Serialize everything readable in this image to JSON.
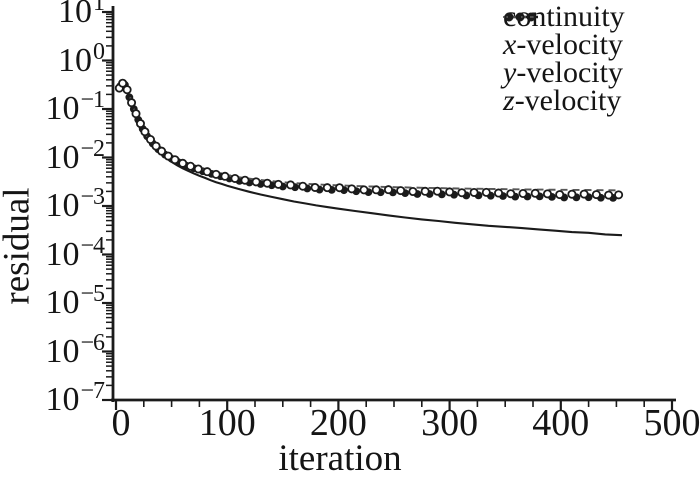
{
  "figure": {
    "background": "#ffffff",
    "ink_color": "#1b1b1b",
    "dashed_color": "#585858"
  },
  "chart_data": {
    "type": "line",
    "title": "",
    "xlabel": "iteration",
    "ylabel": "residual",
    "x_axis": {
      "min": 0,
      "max": 500,
      "major_step": 100,
      "minor_step": 25,
      "tick_labels": [
        "0",
        "100",
        "200",
        "300",
        "400",
        "500"
      ]
    },
    "y_axis": {
      "scale": "log",
      "base": "10",
      "exponents": [
        1,
        0,
        -1,
        -2,
        -3,
        -4,
        -5,
        -6,
        -7
      ],
      "minor_mantissas": [
        2,
        3,
        4,
        5,
        6,
        7,
        8,
        9
      ]
    },
    "legend": {
      "position": "top-right",
      "items": [
        {
          "label": "continuity",
          "var": "",
          "rest": "continuity",
          "marker": "solid-line"
        },
        {
          "label": "x-velocity",
          "var": "x",
          "rest": "-velocity",
          "marker": "filled-dots"
        },
        {
          "label": "y-velocity",
          "var": "y",
          "rest": "-velocity",
          "marker": "dashed-line"
        },
        {
          "label": "z-velocity",
          "var": "z",
          "rest": "-velocity",
          "marker": "open-circles"
        }
      ]
    },
    "series": [
      {
        "name": "continuity",
        "style": "solid",
        "points": [
          [
            2,
            0.24
          ],
          [
            5,
            0.33
          ],
          [
            8,
            0.3
          ],
          [
            11,
            0.2
          ],
          [
            14,
            0.125
          ],
          [
            17,
            0.078
          ],
          [
            20,
            0.052
          ],
          [
            23,
            0.037
          ],
          [
            26,
            0.028
          ],
          [
            30,
            0.0205
          ],
          [
            34,
            0.0162
          ],
          [
            38,
            0.0132
          ],
          [
            42,
            0.011
          ],
          [
            46,
            0.0094
          ],
          [
            50,
            0.0081
          ],
          [
            55,
            0.0069
          ],
          [
            60,
            0.006
          ],
          [
            65,
            0.0053
          ],
          [
            70,
            0.0047
          ],
          [
            75,
            0.0042
          ],
          [
            80,
            0.0038
          ],
          [
            85,
            0.0034
          ],
          [
            90,
            0.0031
          ],
          [
            95,
            0.00285
          ],
          [
            100,
            0.00262
          ],
          [
            110,
            0.00225
          ],
          [
            120,
            0.00196
          ],
          [
            130,
            0.00173
          ],
          [
            140,
            0.00154
          ],
          [
            150,
            0.00138
          ],
          [
            160,
            0.00124
          ],
          [
            170,
            0.00113
          ],
          [
            180,
            0.00103
          ],
          [
            190,
            0.00095
          ],
          [
            200,
            0.00088
          ],
          [
            215,
            0.00079
          ],
          [
            230,
            0.00071
          ],
          [
            245,
            0.00064
          ],
          [
            260,
            0.00058
          ],
          [
            275,
            0.00053
          ],
          [
            290,
            0.00049
          ],
          [
            305,
            0.00045
          ],
          [
            320,
            0.00042
          ],
          [
            335,
            0.00039
          ],
          [
            350,
            0.00037
          ],
          [
            365,
            0.00035
          ],
          [
            380,
            0.00033
          ],
          [
            395,
            0.00031
          ],
          [
            410,
            0.00029
          ],
          [
            425,
            0.00028
          ],
          [
            440,
            0.00026
          ],
          [
            455,
            0.00025
          ]
        ]
      },
      {
        "name": "x-velocity",
        "style": "filled-dots",
        "points": [
          [
            4,
            0.3
          ],
          [
            8,
            0.315
          ],
          [
            12,
            0.175
          ],
          [
            16,
            0.1
          ],
          [
            20,
            0.06
          ],
          [
            24,
            0.039
          ],
          [
            28,
            0.0275
          ],
          [
            33,
            0.0195
          ],
          [
            38,
            0.0148
          ],
          [
            44,
            0.0115
          ],
          [
            50,
            0.0094
          ],
          [
            56,
            0.008
          ],
          [
            63,
            0.0068
          ],
          [
            70,
            0.006
          ],
          [
            78,
            0.0052
          ],
          [
            86,
            0.0046
          ],
          [
            94,
            0.0041
          ],
          [
            102,
            0.0037
          ],
          [
            111,
            0.0033
          ],
          [
            120,
            0.00305
          ],
          [
            130,
            0.00285
          ],
          [
            140,
            0.00268
          ],
          [
            150,
            0.00252
          ],
          [
            161,
            0.00244
          ],
          [
            172,
            0.0023
          ],
          [
            183,
            0.00218
          ],
          [
            194,
            0.00215
          ],
          [
            205,
            0.00212
          ],
          [
            216,
            0.00202
          ],
          [
            227,
            0.00193
          ],
          [
            238,
            0.00192
          ],
          [
            249,
            0.00191
          ],
          [
            260,
            0.00184
          ],
          [
            271,
            0.00177
          ],
          [
            282,
            0.00177
          ],
          [
            293,
            0.00174
          ],
          [
            304,
            0.00171
          ],
          [
            315,
            0.00165
          ],
          [
            326,
            0.00166
          ],
          [
            337,
            0.00163
          ],
          [
            348,
            0.00161
          ],
          [
            359,
            0.00156
          ],
          [
            370,
            0.00157
          ],
          [
            381,
            0.00158
          ],
          [
            392,
            0.00154
          ],
          [
            403,
            0.0015
          ],
          [
            414,
            0.00151
          ],
          [
            425,
            0.00152
          ],
          [
            436,
            0.00148
          ],
          [
            447,
            0.00147
          ]
        ]
      },
      {
        "name": "y-velocity",
        "style": "dashed",
        "points": [
          [
            3,
            0.26
          ],
          [
            6,
            0.35
          ],
          [
            9,
            0.3
          ],
          [
            12,
            0.195
          ],
          [
            15,
            0.12
          ],
          [
            18,
            0.077
          ],
          [
            21,
            0.052
          ],
          [
            24,
            0.038
          ],
          [
            28,
            0.027
          ],
          [
            32,
            0.0205
          ],
          [
            36,
            0.0165
          ],
          [
            41,
            0.0133
          ],
          [
            46,
            0.0111
          ],
          [
            52,
            0.0093
          ],
          [
            58,
            0.0081
          ],
          [
            65,
            0.007
          ],
          [
            72,
            0.0062
          ],
          [
            80,
            0.0055
          ],
          [
            88,
            0.0049
          ],
          [
            96,
            0.0045
          ],
          [
            105,
            0.0041
          ],
          [
            115,
            0.0038
          ],
          [
            125,
            0.00355
          ],
          [
            136,
            0.00333
          ],
          [
            147,
            0.00315
          ],
          [
            158,
            0.003
          ],
          [
            170,
            0.00288
          ],
          [
            182,
            0.00278
          ],
          [
            194,
            0.0027
          ],
          [
            206,
            0.00263
          ],
          [
            218,
            0.00257
          ],
          [
            230,
            0.00252
          ],
          [
            243,
            0.00247
          ],
          [
            256,
            0.00243
          ],
          [
            269,
            0.00239
          ],
          [
            282,
            0.00236
          ],
          [
            295,
            0.00233
          ],
          [
            308,
            0.0023
          ],
          [
            321,
            0.00227
          ],
          [
            334,
            0.00225
          ],
          [
            347,
            0.00223
          ],
          [
            360,
            0.00221
          ],
          [
            373,
            0.00219
          ],
          [
            386,
            0.00218
          ],
          [
            399,
            0.00216
          ],
          [
            412,
            0.00215
          ],
          [
            425,
            0.00214
          ],
          [
            438,
            0.00212
          ],
          [
            450,
            0.00211
          ]
        ]
      },
      {
        "name": "z-velocity",
        "style": "open-circles",
        "points": [
          [
            3,
            0.27
          ],
          [
            6,
            0.34
          ],
          [
            10,
            0.25
          ],
          [
            14,
            0.135
          ],
          [
            18,
            0.08
          ],
          [
            22,
            0.05
          ],
          [
            26,
            0.034
          ],
          [
            31,
            0.0235
          ],
          [
            36,
            0.0172
          ],
          [
            41,
            0.0135
          ],
          [
            47,
            0.0107
          ],
          [
            53,
            0.009
          ],
          [
            60,
            0.0076
          ],
          [
            67,
            0.0066
          ],
          [
            74,
            0.0058
          ],
          [
            82,
            0.0051
          ],
          [
            90,
            0.0045
          ],
          [
            98,
            0.0041
          ],
          [
            107,
            0.0037
          ],
          [
            116,
            0.0034
          ],
          [
            126,
            0.00315
          ],
          [
            136,
            0.00295
          ],
          [
            146,
            0.0028
          ],
          [
            157,
            0.00272
          ],
          [
            168,
            0.00256
          ],
          [
            179,
            0.00241
          ],
          [
            190,
            0.00239
          ],
          [
            201,
            0.00238
          ],
          [
            212,
            0.00226
          ],
          [
            223,
            0.00215
          ],
          [
            234,
            0.00216
          ],
          [
            245,
            0.00217
          ],
          [
            256,
            0.00208
          ],
          [
            267,
            0.00199
          ],
          [
            278,
            0.00201
          ],
          [
            289,
            0.00202
          ],
          [
            300,
            0.00195
          ],
          [
            311,
            0.00188
          ],
          [
            322,
            0.0019
          ],
          [
            333,
            0.00191
          ],
          [
            344,
            0.00185
          ],
          [
            355,
            0.00179
          ],
          [
            366,
            0.00181
          ],
          [
            377,
            0.00183
          ],
          [
            388,
            0.00178
          ],
          [
            399,
            0.00172
          ],
          [
            410,
            0.00175
          ],
          [
            421,
            0.00176
          ],
          [
            432,
            0.00172
          ],
          [
            443,
            0.00168
          ],
          [
            452,
            0.0017
          ]
        ]
      }
    ]
  }
}
